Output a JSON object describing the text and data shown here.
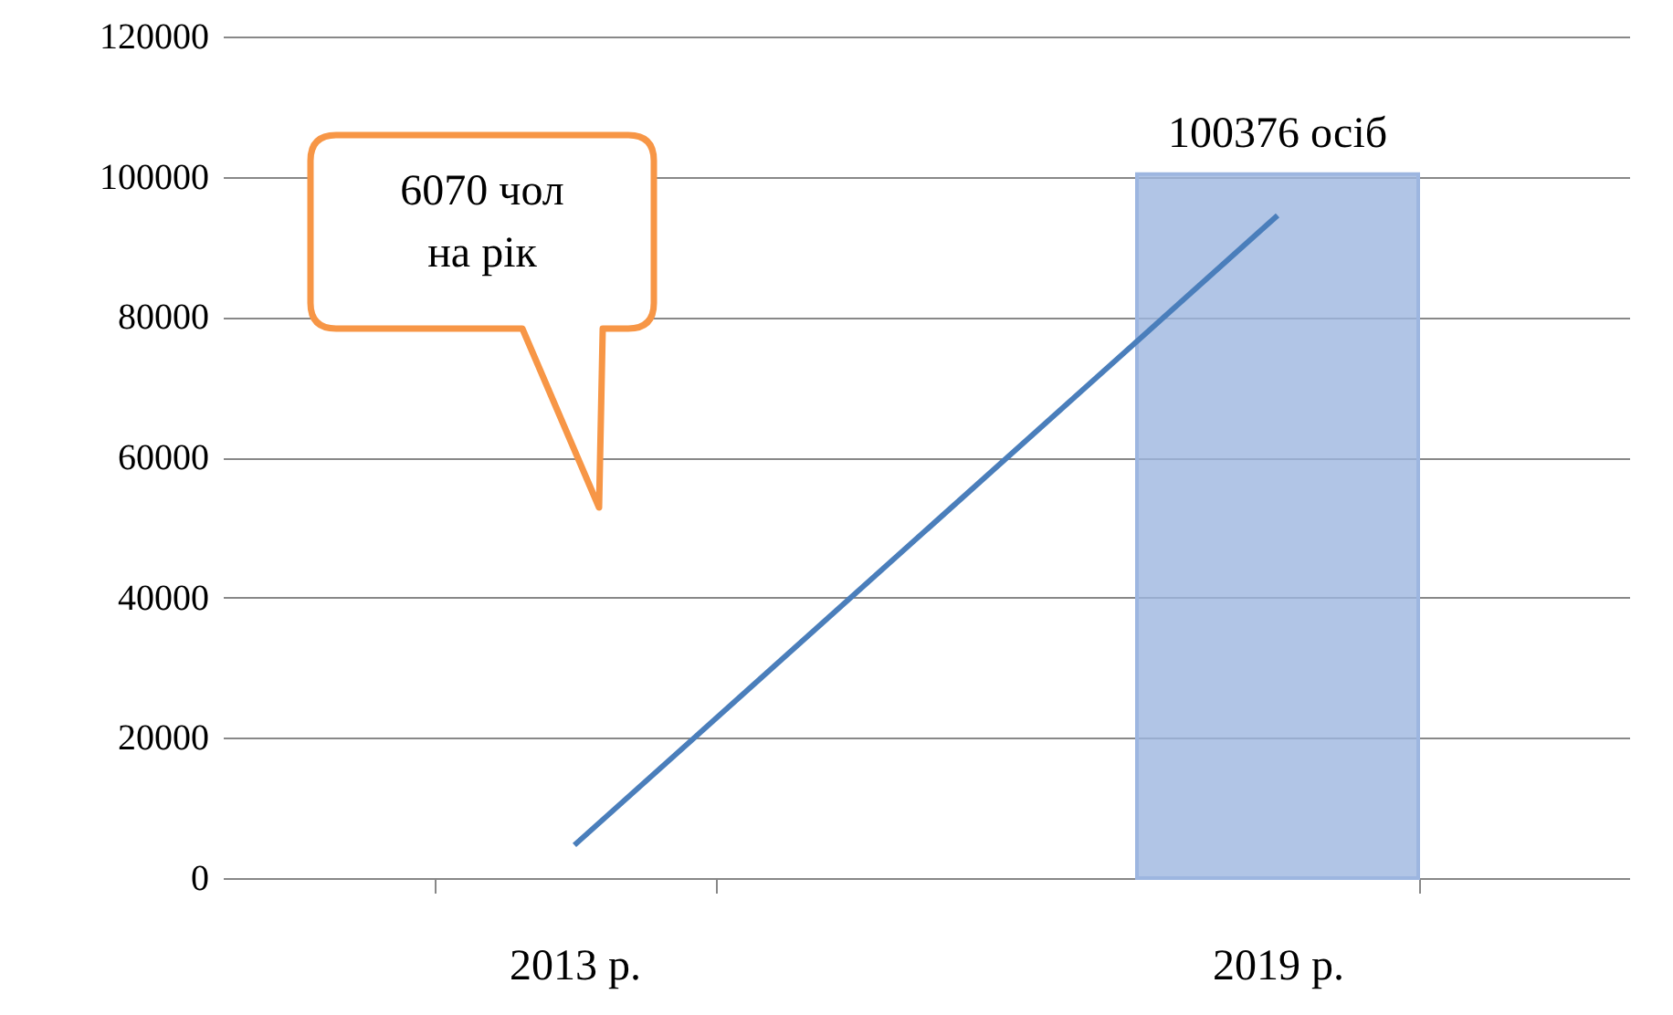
{
  "chart_data": {
    "type": "bar",
    "categories": [
      "2013 р.",
      "2019 р."
    ],
    "series": [
      {
        "color": "#9db6e0",
        "values": [
          null,
          100376
        ],
        "value_labels": [
          null,
          "100376 осіб"
        ]
      },
      {
        "type": "line",
        "color": "#4a7ebb",
        "values": [
          4700,
          94500
        ]
      }
    ],
    "ylim": [
      0,
      120000
    ],
    "yticks": [
      0,
      20000,
      40000,
      60000,
      80000,
      100000,
      120000
    ],
    "grid": "y",
    "annotations": [
      "6070 чол\nна рік"
    ]
  }
}
